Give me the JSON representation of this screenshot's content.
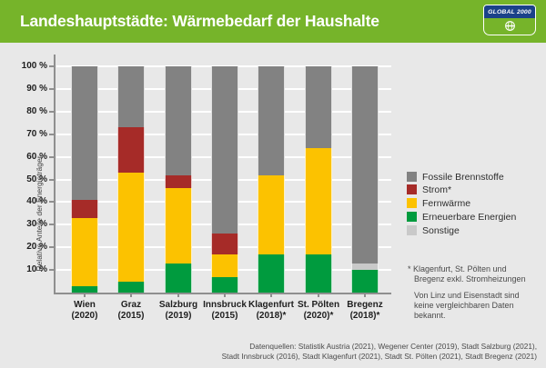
{
  "header": {
    "title": "Landeshauptstädte: Wärmebedarf der Haushalte",
    "logo_text": "GLOBAL 2000"
  },
  "colors": {
    "header_green": "#76B42A",
    "background": "#E8E8E8",
    "logo_blue": "#1B4289",
    "axis": "#8F8F8F",
    "gridline": "#FFFFFF"
  },
  "chart_data": {
    "type": "bar",
    "stacked": true,
    "title": "Landeshauptstädte: Wärmebedarf der Haushalte",
    "ylabel": "Relative Anteile der Energieträger",
    "ylim": [
      0,
      100
    ],
    "grid": true,
    "legend_position": "right",
    "yticks": [
      10,
      20,
      30,
      40,
      50,
      60,
      70,
      80,
      90,
      100
    ],
    "ytick_labels": [
      "10 %",
      "20 %",
      "30 %",
      "40 %",
      "50 %",
      "60 %",
      "70 %",
      "80 %",
      "90 %",
      "100 %"
    ],
    "categories": [
      {
        "city": "Wien",
        "year": "(2020)"
      },
      {
        "city": "Graz",
        "year": "(2015)"
      },
      {
        "city": "Salzburg",
        "year": "(2019)"
      },
      {
        "city": "Innsbruck",
        "year": "(2015)"
      },
      {
        "city": "Klagenfurt",
        "year": "(2018)*"
      },
      {
        "city": "St. Pölten",
        "year": "(2020)*"
      },
      {
        "city": "Bregenz",
        "year": "(2018)*"
      }
    ],
    "series": [
      {
        "name": "Erneuerbare Energien",
        "color": "#009B3E",
        "values": [
          3,
          5,
          13,
          7,
          17,
          17,
          10
        ]
      },
      {
        "name": "Sonstige",
        "color": "#C9C9C9",
        "values": [
          0,
          0,
          0,
          0,
          0,
          0,
          3
        ]
      },
      {
        "name": "Fernwärme",
        "color": "#FCC200",
        "values": [
          30,
          48,
          33,
          10,
          35,
          47,
          0
        ]
      },
      {
        "name": "Strom*",
        "color": "#A62B28",
        "values": [
          8,
          20,
          6,
          9,
          0,
          0,
          0
        ]
      },
      {
        "name": "Fossile Brennstoffe",
        "color": "#828282",
        "values": [
          59,
          27,
          48,
          74,
          48,
          36,
          87
        ]
      }
    ],
    "legend": [
      {
        "label": "Fossile Brennstoffe",
        "color": "#828282"
      },
      {
        "label": "Strom*",
        "color": "#A62B28"
      },
      {
        "label": "Fernwärme",
        "color": "#FCC200"
      },
      {
        "label": "Erneuerbare Energien",
        "color": "#009B3E"
      },
      {
        "label": "Sonstige",
        "color": "#C9C9C9"
      }
    ]
  },
  "footnotes": {
    "star": {
      "lines": [
        "* Klagenfurt, St. Pölten und",
        "Bregenz exkl. Stromheizungen"
      ]
    },
    "note": {
      "lines": [
        "Von Linz und Eisenstadt sind",
        "keine vergleichbaren Daten",
        "bekannt."
      ]
    }
  },
  "source": {
    "lines": [
      "Datenquellen: Statistik Austria (2021), Wegener Center (2019), Stadt Salzburg (2021),",
      "Stadt Innsbruck (2016), Stadt Klagenfurt (2021), Stadt St. Pölten (2021), Stadt Bregenz (2021)"
    ]
  }
}
